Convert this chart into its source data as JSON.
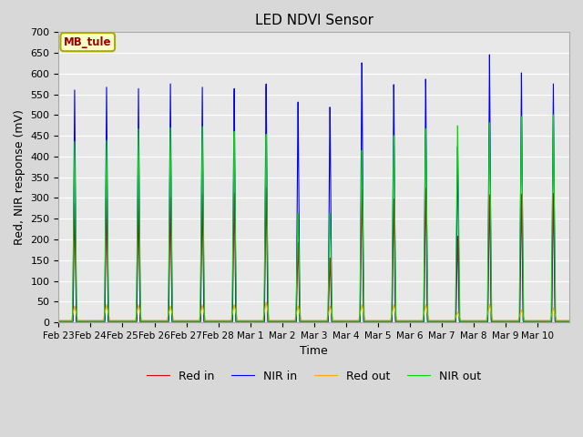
{
  "title": "LED NDVI Sensor",
  "xlabel": "Time",
  "ylabel": "Red, NIR response (mV)",
  "ylim": [
    0,
    700
  ],
  "legend_label": "MB_tule",
  "legend_entries": [
    "Red in",
    "NIR in",
    "Red out",
    "NIR out"
  ],
  "colors": {
    "red_in": "#dd0000",
    "nir_in": "#0000ee",
    "red_out": "#ffaa00",
    "nir_out": "#00dd00"
  },
  "tick_labels": [
    "Feb 23",
    "Feb 24",
    "Feb 25",
    "Feb 26",
    "Feb 27",
    "Feb 28",
    "Mar 1",
    "Mar 2",
    "Mar 3",
    "Mar 4",
    "Mar 5",
    "Mar 6",
    "Mar 7",
    "Mar 8",
    "Mar 9",
    "Mar 10"
  ],
  "nir_in_peaks": [
    560,
    570,
    570,
    585,
    580,
    580,
    595,
    553,
    540,
    648,
    590,
    600,
    430,
    653,
    605,
    575
  ],
  "red_in_peaks": [
    285,
    300,
    300,
    305,
    315,
    320,
    335,
    200,
    160,
    330,
    305,
    330,
    210,
    310,
    310,
    310
  ],
  "nir_out_peaks": [
    435,
    440,
    470,
    475,
    480,
    470,
    465,
    270,
    270,
    425,
    460,
    475,
    480,
    485,
    498,
    500
  ],
  "red_out_peaks": [
    35,
    38,
    38,
    35,
    38,
    38,
    45,
    35,
    35,
    38,
    38,
    38,
    20,
    38,
    25,
    30
  ],
  "n_days": 16,
  "fig_facecolor": "#d8d8d8",
  "ax_facecolor": "#e8e8e8",
  "grid_color": "#ffffff"
}
